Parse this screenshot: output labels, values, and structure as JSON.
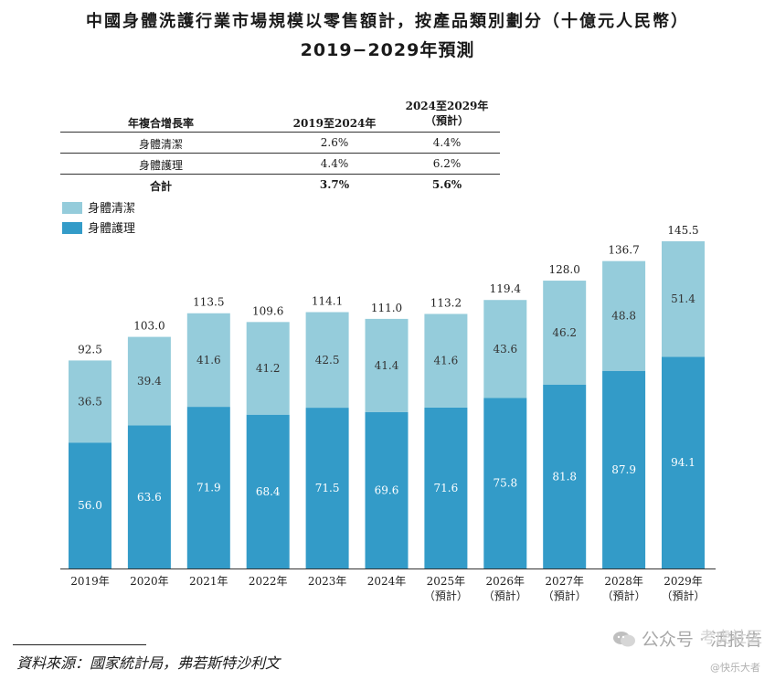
{
  "title": {
    "line1": "中國身體洗護行業市場規模以零售額計，按產品類別劃分（十億元人民幣）",
    "line2": "2019−2029年預測"
  },
  "cagr_table": {
    "header": {
      "label": "年複合增長率",
      "period1": "2019至2024年",
      "period2_line1": "2024至2029年",
      "period2_line2": "（預計）"
    },
    "rows": [
      {
        "label": "身體清潔",
        "p1": "2.6%",
        "p2": "4.4%"
      },
      {
        "label": "身體護理",
        "p1": "4.4%",
        "p2": "6.2%"
      }
    ],
    "total": {
      "label": "合計",
      "p1": "3.7%",
      "p2": "5.6%"
    }
  },
  "legend": {
    "cleansing": "身體清潔",
    "care": "身體護理"
  },
  "colors": {
    "cleansing": "#95CCDB",
    "care": "#339BC8"
  },
  "chart_data": {
    "type": "bar",
    "stacked": true,
    "categories": [
      [
        "2019年"
      ],
      [
        "2020年"
      ],
      [
        "2021年"
      ],
      [
        "2022年"
      ],
      [
        "2023年"
      ],
      [
        "2024年"
      ],
      [
        "2025年",
        "（預計）"
      ],
      [
        "2026年",
        "（預計）"
      ],
      [
        "2027年",
        "（預計）"
      ],
      [
        "2028年",
        "（預計）"
      ],
      [
        "2029年",
        "（預計）"
      ]
    ],
    "series": [
      {
        "name": "身體護理",
        "values": [
          56.0,
          63.6,
          71.9,
          68.4,
          71.5,
          69.6,
          71.6,
          75.8,
          81.8,
          87.9,
          94.1
        ]
      },
      {
        "name": "身體清潔",
        "values": [
          36.5,
          39.4,
          41.6,
          41.2,
          42.5,
          41.4,
          41.6,
          43.6,
          46.2,
          48.8,
          51.4
        ]
      }
    ],
    "totals": [
      92.5,
      103.0,
      113.5,
      109.6,
      114.1,
      111.0,
      113.2,
      119.4,
      128.0,
      136.7,
      145.5
    ],
    "ylim": [
      0,
      145.5
    ]
  },
  "source": "資料來源：國家統計局，弗若斯特沙利文",
  "watermark": {
    "main": "公众号 · 活报告",
    "overlay": "考虎社区",
    "sub": "@快乐大者"
  }
}
